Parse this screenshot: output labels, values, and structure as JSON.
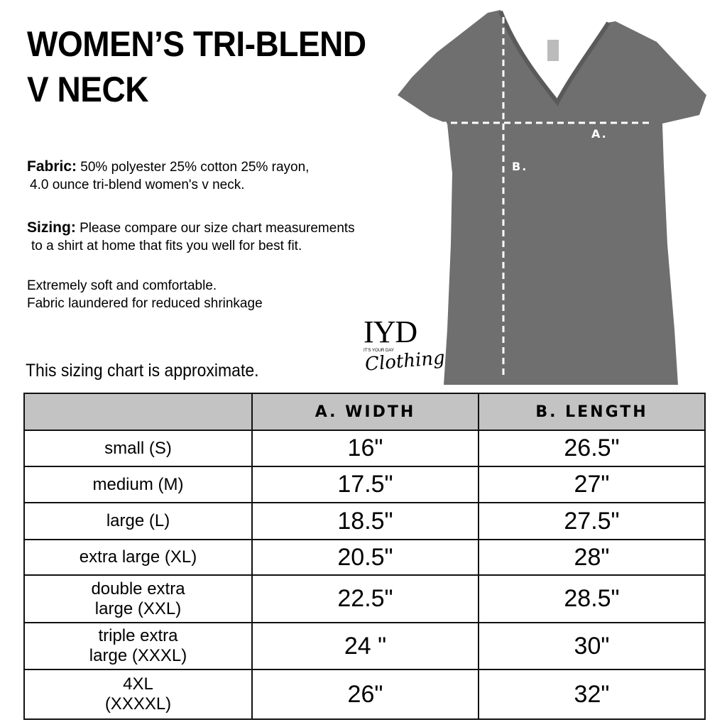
{
  "title": {
    "line1": "WOMEN’S TRI-BLEND",
    "line2": "V NECK"
  },
  "fabric": {
    "label": "Fabric:",
    "line1": " 50% polyester 25% cotton 25% rayon,",
    "line2": "4.0 ounce tri-blend women's v neck."
  },
  "sizing": {
    "label": "Sizing:",
    "line1": " Please compare our size chart measurements",
    "line2": "to a shirt at home that fits you well for best fit."
  },
  "features": {
    "line1": "Extremely soft and comfortable.",
    "line2": "Fabric laundered for reduced shrinkage"
  },
  "note": "This sizing chart is approximate.",
  "diagram": {
    "label_a": "A.",
    "label_b": "B.",
    "shirt_color": "#6f6f6f"
  },
  "logo": {
    "mark": "IYD",
    "tagline": "IT'S YOUR DAY",
    "script": "Clothing"
  },
  "table": {
    "header_color": "#c3c3c3",
    "headers": [
      "",
      "A. WIDTH",
      "B. LENGTH"
    ],
    "rows": [
      {
        "size": "small (S)",
        "width": "16\"",
        "length": "26.5\""
      },
      {
        "size": "medium (M)",
        "width": "17.5\"",
        "length": "27\""
      },
      {
        "size": "large (L)",
        "width": "18.5\"",
        "length": "27.5\""
      },
      {
        "size": "extra large (XL)",
        "width": "20.5\"",
        "length": "28\""
      },
      {
        "size": "double extra large (XXL)",
        "width": "22.5\"",
        "length": "28.5\""
      },
      {
        "size": "triple extra large (XXXL)",
        "width": "24 \"",
        "length": "30\""
      },
      {
        "size": "4XL (XXXXL)",
        "width": "26\"",
        "length": "32\""
      }
    ]
  }
}
